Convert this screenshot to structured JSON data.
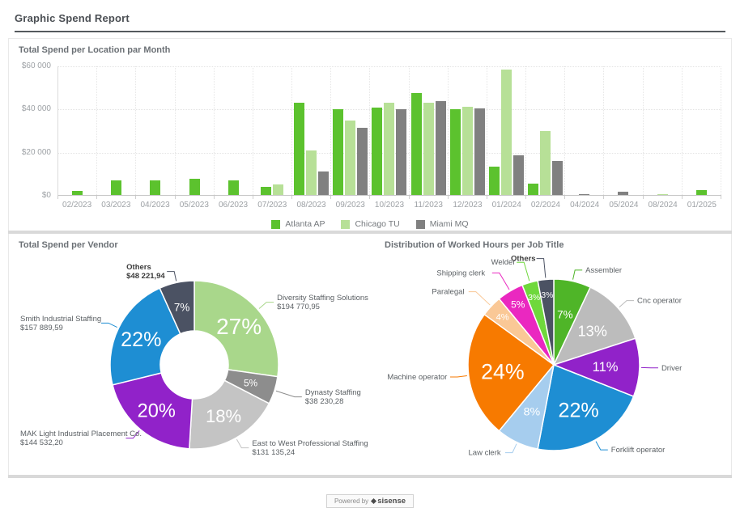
{
  "page": {
    "title": "Graphic Spend Report"
  },
  "footer": {
    "powered_by": "Powered by",
    "brand": "sisense"
  },
  "chart_data": [
    {
      "type": "bar",
      "title": "Total Spend per Location par Month",
      "categories": [
        "02/2023",
        "03/2023",
        "04/2023",
        "05/2023",
        "06/2023",
        "07/2023",
        "08/2023",
        "09/2023",
        "10/2023",
        "11/2023",
        "12/2023",
        "01/2024",
        "02/2024",
        "04/2024",
        "05/2024",
        "08/2024",
        "01/2025"
      ],
      "series": [
        {
          "name": "Atlanta AP",
          "color": "#5cc22e",
          "values": [
            2000,
            6600,
            6600,
            7400,
            6700,
            3900,
            42600,
            39900,
            40400,
            47400,
            39600,
            13000,
            5200,
            null,
            null,
            null,
            2400
          ]
        },
        {
          "name": "Chicago TU",
          "color": "#b7e097",
          "values": [
            null,
            null,
            null,
            null,
            null,
            4700,
            20600,
            34600,
            42900,
            42900,
            40900,
            58000,
            29500,
            null,
            null,
            500,
            null
          ]
        },
        {
          "name": "Miami MQ",
          "color": "#808080",
          "values": [
            null,
            null,
            null,
            null,
            null,
            null,
            11000,
            31100,
            39600,
            43600,
            40300,
            18500,
            15600,
            400,
            1500,
            null,
            null
          ]
        }
      ],
      "ylim": [
        0,
        60000
      ],
      "y_ticks": [
        "$60 000",
        "$40 000",
        "$20 000",
        "$0"
      ],
      "grid": true,
      "legend_position": "bottom"
    },
    {
      "type": "pie",
      "variant": "donut",
      "title": "Total Spend per Vendor",
      "slices": [
        {
          "label": "Diversity Staffing Solutions",
          "value": 194770.95,
          "value_label": "$194 770,95",
          "pct": 27,
          "pct_label": "27%",
          "color": "#a9d78b"
        },
        {
          "label": "Dynasty Staffing",
          "value": 38230.28,
          "value_label": "$38 230,28",
          "pct": 5,
          "pct_label": "5%",
          "color": "#8d8d8d"
        },
        {
          "label": "East to West Professional Staffing",
          "value": 131135.24,
          "value_label": "$131 135,24",
          "pct": 18,
          "pct_label": "18%",
          "color": "#c4c4c4"
        },
        {
          "label": "MAK Light Industrial Placement Co.",
          "value": 144532.2,
          "value_label": "$144 532,20",
          "pct": 20,
          "pct_label": "20%",
          "color": "#9122c9"
        },
        {
          "label": "Smith Industrial Staffing",
          "value": 157889.59,
          "value_label": "$157 889,59",
          "pct": 22,
          "pct_label": "22%",
          "color": "#1e8ed3"
        },
        {
          "label": "Others",
          "value": 48221.94,
          "value_label": "$48 221,94",
          "pct": 7,
          "pct_label": "7%",
          "color": "#4b5263",
          "emphasis": true
        }
      ]
    },
    {
      "type": "pie",
      "title": "Distribution of Worked Hours per Job Title",
      "slices": [
        {
          "label": "Assembler",
          "value": 7,
          "pct": 7,
          "pct_label": "7%",
          "color": "#4fb528"
        },
        {
          "label": "Cnc operator",
          "value": 13,
          "pct": 13,
          "pct_label": "13%",
          "color": "#bcbcbc"
        },
        {
          "label": "Driver",
          "value": 11,
          "pct": 11,
          "pct_label": "11%",
          "color": "#9122c9"
        },
        {
          "label": "Forklift operator",
          "value": 22,
          "pct": 22,
          "pct_label": "22%",
          "color": "#1e8ed3"
        },
        {
          "label": "Law clerk",
          "value": 8,
          "pct": 8,
          "pct_label": "8%",
          "color": "#a6cdee"
        },
        {
          "label": "Machine operator",
          "value": 24,
          "pct": 24,
          "pct_label": "24%",
          "color": "#f77a00"
        },
        {
          "label": "Paralegal",
          "value": 4,
          "pct": 4,
          "pct_label": "4%",
          "color": "#fac896"
        },
        {
          "label": "Shipping clerk",
          "value": 5,
          "pct": 5,
          "pct_label": "5%",
          "color": "#ea28c0"
        },
        {
          "label": "Welder",
          "value": 3,
          "pct": 3,
          "pct_label": "3%",
          "color": "#6fd83c"
        },
        {
          "label": "Others",
          "value": 3,
          "pct": 3,
          "pct_label": "3%",
          "color": "#4b5263",
          "emphasis": true
        }
      ]
    }
  ]
}
